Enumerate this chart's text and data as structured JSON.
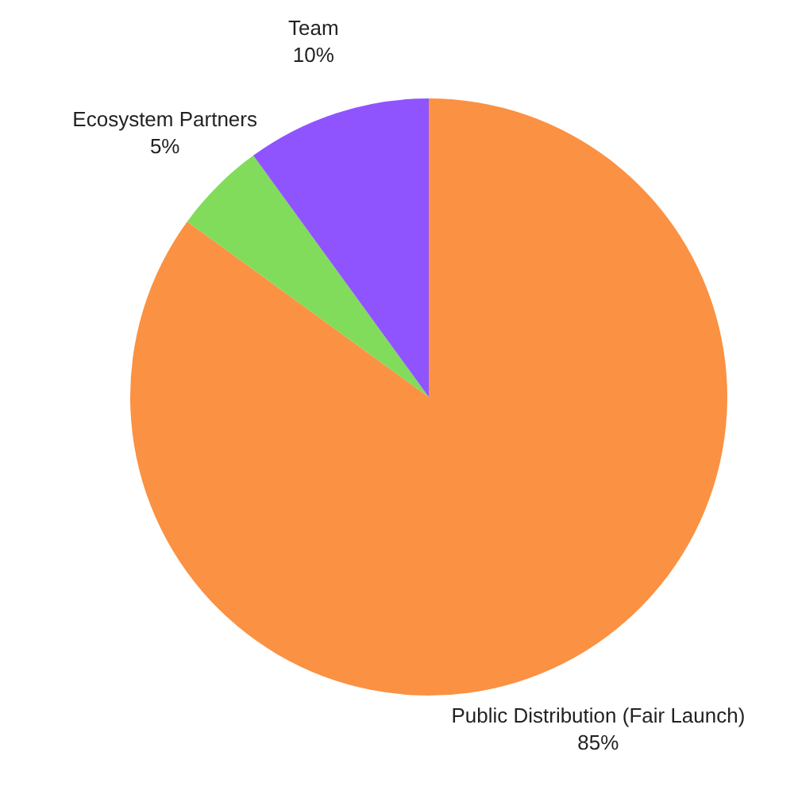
{
  "chart_data": {
    "type": "pie",
    "categories": [
      "Public Distribution (Fair Launch)",
      "Ecosystem Partners",
      "Team"
    ],
    "values": [
      85,
      5,
      10
    ],
    "colors": [
      "#fb9142",
      "#80dc5a",
      "#8f54fe"
    ],
    "value_labels": [
      "85%",
      "5%",
      "10%"
    ],
    "legend": false
  }
}
